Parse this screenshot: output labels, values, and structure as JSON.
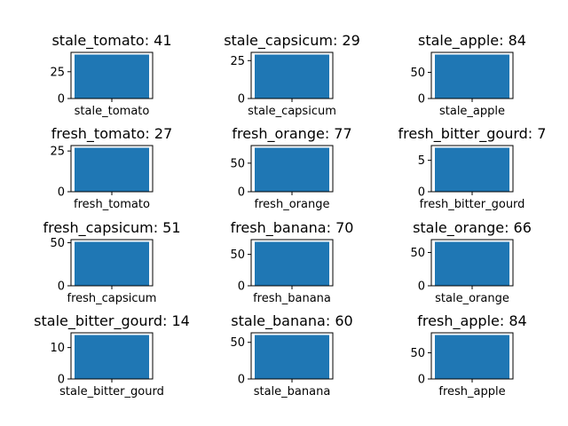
{
  "chart_data": [
    {
      "type": "bar",
      "title": "stale_tomato: 41",
      "categories": [
        "stale_tomato"
      ],
      "values": [
        41
      ],
      "ylim": [
        0,
        43.05
      ],
      "yticks": [
        0,
        25
      ],
      "grid": false
    },
    {
      "type": "bar",
      "title": "stale_capsicum: 29",
      "categories": [
        "stale_capsicum"
      ],
      "values": [
        29
      ],
      "ylim": [
        0,
        30.45
      ],
      "yticks": [
        0,
        25
      ],
      "grid": false
    },
    {
      "type": "bar",
      "title": "stale_apple: 84",
      "categories": [
        "stale_apple"
      ],
      "values": [
        84
      ],
      "ylim": [
        0,
        88.2
      ],
      "yticks": [
        0,
        50
      ],
      "grid": false
    },
    {
      "type": "bar",
      "title": "fresh_tomato: 27",
      "categories": [
        "fresh_tomato"
      ],
      "values": [
        27
      ],
      "ylim": [
        0,
        28.35
      ],
      "yticks": [
        0,
        25
      ],
      "grid": false
    },
    {
      "type": "bar",
      "title": "fresh_orange: 77",
      "categories": [
        "fresh_orange"
      ],
      "values": [
        77
      ],
      "ylim": [
        0,
        80.85
      ],
      "yticks": [
        0,
        50
      ],
      "grid": false
    },
    {
      "type": "bar",
      "title": "fresh_bitter_gourd: 7",
      "categories": [
        "fresh_bitter_gourd"
      ],
      "values": [
        7
      ],
      "ylim": [
        0,
        7.35
      ],
      "yticks": [
        0,
        5
      ],
      "grid": false
    },
    {
      "type": "bar",
      "title": "fresh_capsicum: 51",
      "categories": [
        "fresh_capsicum"
      ],
      "values": [
        51
      ],
      "ylim": [
        0,
        53.55
      ],
      "yticks": [
        0,
        50
      ],
      "grid": false
    },
    {
      "type": "bar",
      "title": "fresh_banana: 70",
      "categories": [
        "fresh_banana"
      ],
      "values": [
        70
      ],
      "ylim": [
        0,
        73.5
      ],
      "yticks": [
        0,
        50
      ],
      "grid": false
    },
    {
      "type": "bar",
      "title": "stale_orange: 66",
      "categories": [
        "stale_orange"
      ],
      "values": [
        66
      ],
      "ylim": [
        0,
        69.3
      ],
      "yticks": [
        0,
        50
      ],
      "grid": false
    },
    {
      "type": "bar",
      "title": "stale_bitter_gourd: 14",
      "categories": [
        "stale_bitter_gourd"
      ],
      "values": [
        14
      ],
      "ylim": [
        0,
        14.7
      ],
      "yticks": [
        0,
        10
      ],
      "grid": false
    },
    {
      "type": "bar",
      "title": "stale_banana: 60",
      "categories": [
        "stale_banana"
      ],
      "values": [
        60
      ],
      "ylim": [
        0,
        63
      ],
      "yticks": [
        0,
        50
      ],
      "grid": false
    },
    {
      "type": "bar",
      "title": "fresh_apple: 84",
      "categories": [
        "fresh_apple"
      ],
      "values": [
        84
      ],
      "ylim": [
        0,
        88.2
      ],
      "yticks": [
        0,
        50
      ],
      "grid": false
    }
  ],
  "colors": {
    "bar": "#1f77b4",
    "axis": "#000000",
    "background": "#ffffff"
  }
}
